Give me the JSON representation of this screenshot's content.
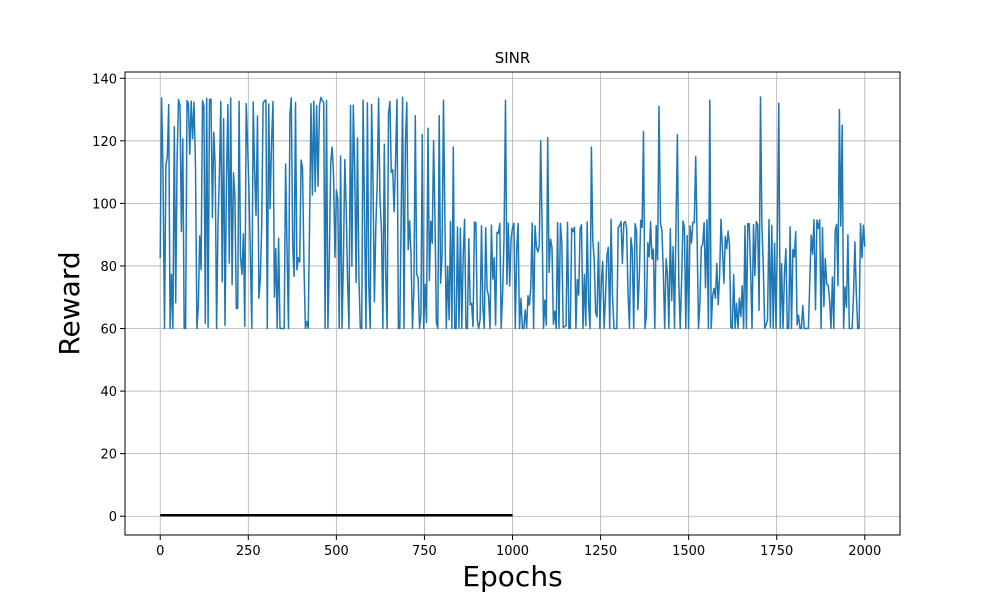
{
  "chart_data": {
    "type": "line",
    "title": "SINR",
    "xlabel": "Epochs",
    "ylabel": "Reward",
    "xlim": [
      -100,
      2100
    ],
    "ylim": [
      -6,
      142
    ],
    "xticks": [
      0,
      250,
      500,
      750,
      1000,
      1250,
      1500,
      1750,
      2000
    ],
    "yticks": [
      0,
      20,
      40,
      60,
      80,
      100,
      120,
      140
    ],
    "xtick_labels": [
      "0",
      "250",
      "500",
      "750",
      "1000",
      "1250",
      "1500",
      "1750",
      "2000"
    ],
    "ytick_labels": [
      "0",
      "20",
      "40",
      "60",
      "80",
      "100",
      "120",
      "140"
    ],
    "grid": true,
    "legend": false,
    "series": [
      {
        "color": "#1f77b4",
        "x_start": 0,
        "x_end": 2000,
        "pattern": "noisy oscillation",
        "segments": [
          {
            "x_from": 0,
            "x_to": 700,
            "low": 60,
            "high": 135,
            "typical_low": 60,
            "typical_high": 134
          },
          {
            "x_from": 700,
            "x_to": 2000,
            "low": 60,
            "high": 95,
            "typical_low": 60,
            "typical_high": 95
          }
        ],
        "spikes": [
          {
            "x": 725,
            "y": 128
          },
          {
            "x": 745,
            "y": 122
          },
          {
            "x": 760,
            "y": 124
          },
          {
            "x": 775,
            "y": 120
          },
          {
            "x": 790,
            "y": 128
          },
          {
            "x": 805,
            "y": 133
          },
          {
            "x": 830,
            "y": 118
          },
          {
            "x": 978,
            "y": 133
          },
          {
            "x": 1080,
            "y": 120
          },
          {
            "x": 1098,
            "y": 121
          },
          {
            "x": 1225,
            "y": 118
          },
          {
            "x": 1370,
            "y": 123
          },
          {
            "x": 1415,
            "y": 131
          },
          {
            "x": 1467,
            "y": 122
          },
          {
            "x": 1520,
            "y": 115
          },
          {
            "x": 1558,
            "y": 133
          },
          {
            "x": 1705,
            "y": 134
          },
          {
            "x": 1755,
            "y": 132
          },
          {
            "x": 1927,
            "y": 130
          },
          {
            "x": 1937,
            "y": 125
          }
        ]
      },
      {
        "color": "#000000",
        "x_start": 0,
        "x_end": 1000,
        "value": 0.3
      }
    ]
  }
}
